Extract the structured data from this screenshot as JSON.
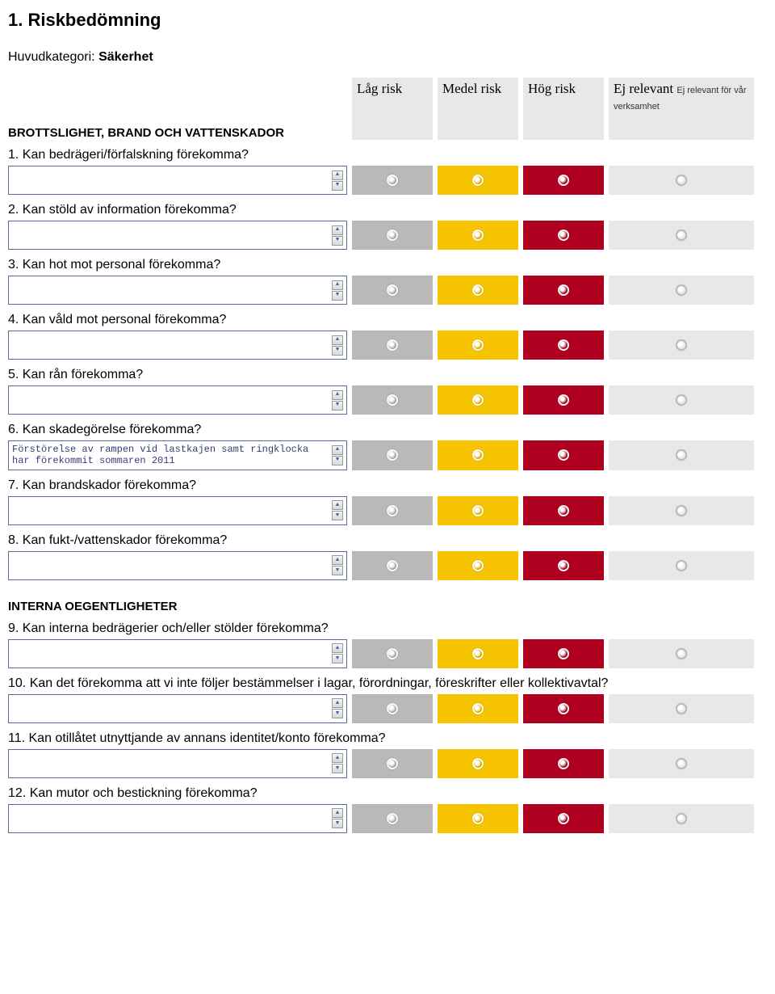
{
  "page": {
    "title": "1. Riskbedömning",
    "category_label": "Huvudkategori:",
    "category_value": "Säkerhet"
  },
  "headers": {
    "section_label": "BROTTSLIGHET, BRAND OCH VATTENSKADOR",
    "low": "Låg risk",
    "med": "Medel risk",
    "high": "Hög risk",
    "ej": "Ej relevant",
    "ej_note": "Ej relevant för vår verksamhet"
  },
  "colors": {
    "low_bg": "#b9b9b9",
    "med_bg": "#f6c400",
    "high_bg": "#b00020",
    "ej_bg": "#e8e8e8"
  },
  "sections": [
    {
      "heading": null,
      "questions": [
        {
          "label": "1. Kan bedrägeri/förfalskning förekomma?",
          "textarea_value": ""
        },
        {
          "label": "2. Kan stöld av information förekomma?",
          "textarea_value": ""
        },
        {
          "label": "3. Kan hot mot personal förekomma?",
          "textarea_value": ""
        },
        {
          "label": "4. Kan våld mot personal förekomma?",
          "textarea_value": ""
        },
        {
          "label": "5. Kan rån förekomma?",
          "textarea_value": ""
        },
        {
          "label": "6. Kan skadegörelse förekomma?",
          "textarea_value": "Förstörelse av rampen vid lastkajen samt ringklocka har förekommit sommaren 2011"
        },
        {
          "label": "7. Kan brandskador förekomma?",
          "textarea_value": ""
        },
        {
          "label": "8. Kan fukt-/vattenskador förekomma?",
          "textarea_value": ""
        }
      ]
    },
    {
      "heading": "INTERNA OEGENTLIGHETER",
      "questions": [
        {
          "label": "9. Kan interna bedrägerier och/eller stölder förekomma?",
          "textarea_value": ""
        },
        {
          "label": "10. Kan det förekomma att vi inte följer bestämmelser i lagar, förordningar, föreskrifter eller kollektivavtal?",
          "textarea_value": ""
        },
        {
          "label": "11. Kan otillåtet utnyttjande av annans identitet/konto förekomma?",
          "textarea_value": ""
        },
        {
          "label": "12. Kan mutor och bestickning förekomma?",
          "textarea_value": ""
        }
      ]
    }
  ]
}
